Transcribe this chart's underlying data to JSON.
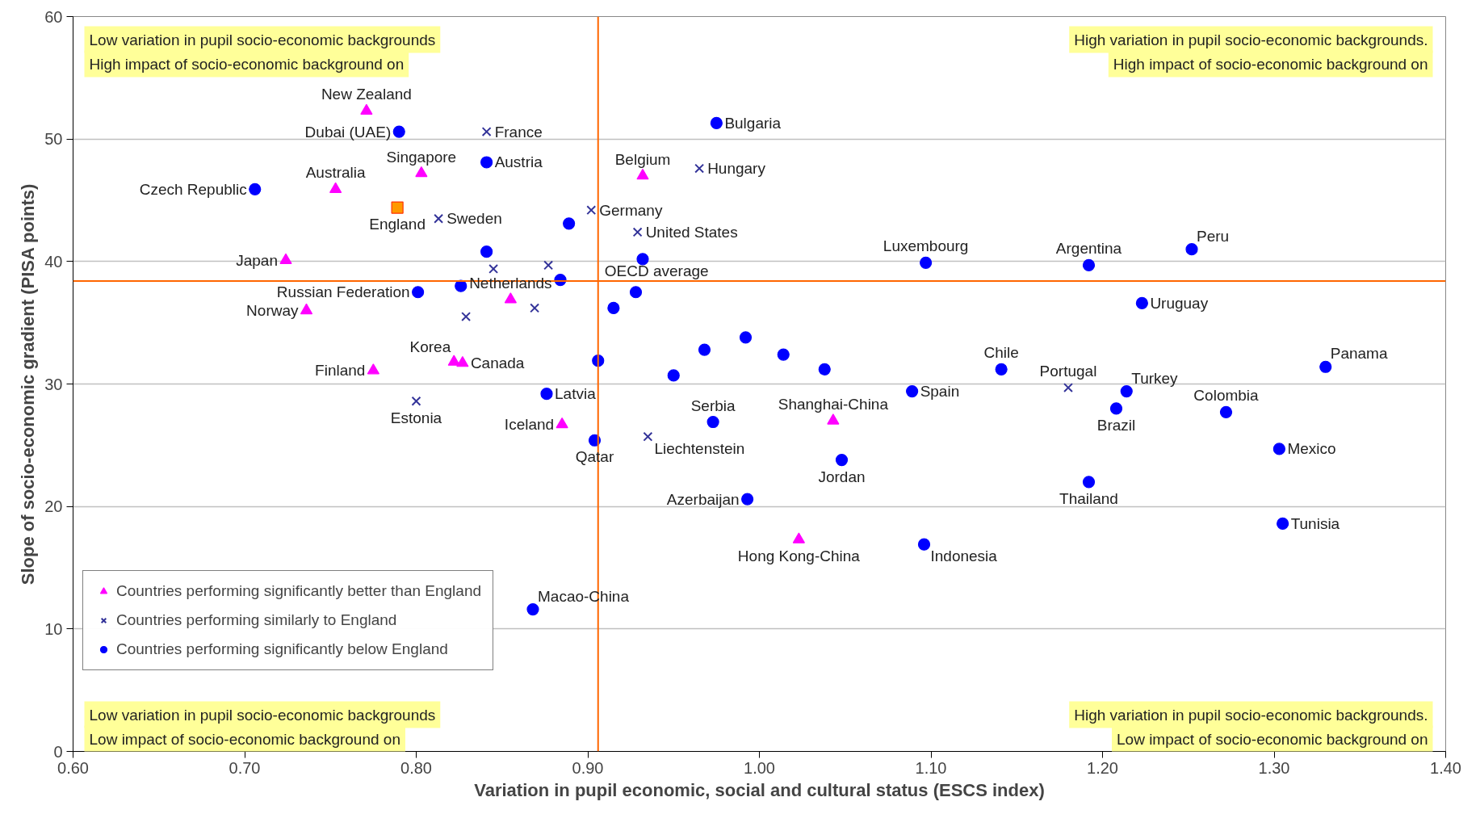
{
  "chart_data": {
    "type": "scatter",
    "xlabel": "Variation in pupil economic, social and cultural status (ESCS index)",
    "ylabel": "Slope of socio-economic gradient (PISA points)",
    "xlim": [
      0.6,
      1.4
    ],
    "ylim": [
      0,
      60
    ],
    "xticks": [
      {
        "value": 0.6,
        "label": "0.60"
      },
      {
        "value": 0.7,
        "label": "0.70"
      },
      {
        "value": 0.8,
        "label": "0.80"
      },
      {
        "value": 0.9,
        "label": "0.90"
      },
      {
        "value": 1.0,
        "label": "1.00"
      },
      {
        "value": 1.1,
        "label": "1.10"
      },
      {
        "value": 1.2,
        "label": "1.20"
      },
      {
        "value": 1.3,
        "label": "1.30"
      },
      {
        "value": 1.4,
        "label": "1.40"
      }
    ],
    "yticks": [
      0,
      10,
      20,
      30,
      40,
      50,
      60
    ],
    "grid": "y",
    "legend": "bottom left",
    "series": [
      {
        "name": "Countries performing significantly better than England",
        "color": "#ff00ff",
        "marker": "triangle",
        "x": [
          0.771,
          0.803,
          0.753,
          0.724,
          0.736,
          0.775,
          0.822,
          0.827,
          0.855,
          0.932,
          0.885,
          1.043,
          1.023
        ],
        "values": [
          52.3,
          47.2,
          45.9,
          40.1,
          36.0,
          31.1,
          31.8,
          31.7,
          36.9,
          47.0,
          26.7,
          27.0,
          17.3
        ]
      },
      {
        "name": "Countries performing similarly to England",
        "color": "#333399",
        "marker": "cross",
        "x": [
          0.841,
          0.813,
          0.902,
          0.929,
          0.965,
          0.845,
          0.877,
          0.869,
          0.829,
          0.8,
          0.935,
          1.18
        ],
        "values": [
          50.6,
          43.5,
          44.2,
          42.4,
          47.6,
          39.4,
          39.7,
          36.2,
          35.5,
          28.6,
          25.7,
          29.7
        ]
      },
      {
        "name": "Countries performing significantly below England",
        "color": "#0000ff",
        "marker": "circle",
        "x": [
          0.79,
          0.706,
          0.841,
          0.975,
          0.889,
          0.841,
          0.932,
          0.884,
          0.801,
          0.826,
          0.928,
          0.915,
          0.906,
          0.968,
          0.992,
          1.014,
          1.038,
          0.95,
          0.876,
          0.904,
          0.973,
          1.048,
          0.993,
          0.868,
          1.089,
          1.096,
          1.097,
          1.192,
          1.252,
          1.223,
          1.141,
          1.214,
          1.208,
          1.272,
          1.33,
          1.303,
          1.192,
          1.305
        ],
        "values": [
          50.6,
          45.9,
          48.1,
          51.3,
          43.1,
          40.8,
          40.2,
          38.5,
          37.5,
          38.0,
          37.5,
          36.2,
          31.9,
          32.8,
          33.8,
          32.4,
          31.2,
          30.7,
          29.2,
          25.4,
          26.9,
          23.8,
          20.6,
          11.6,
          29.4,
          16.9,
          39.9,
          39.7,
          41.0,
          36.6,
          31.2,
          29.4,
          28.0,
          27.7,
          31.4,
          24.7,
          22.0,
          18.6
        ]
      },
      {
        "color": "#ff9900",
        "marker": "square",
        "x": [
          0.789
        ],
        "values": [
          44.4
        ]
      }
    ],
    "ref_lines": [
      {
        "axis": "x",
        "value": 0.906,
        "color": "#ff6600"
      },
      {
        "axis": "y",
        "value": 38.4,
        "label": "OECD average",
        "color": "#ff6600"
      }
    ],
    "annotations": [
      "Low variation in pupil socio-economic backgrounds",
      "High impact of socio-economic background on",
      "High variation in pupil socio-economic backgrounds.",
      "High impact of socio-economic background on",
      "Low variation in pupil socio-economic backgrounds",
      "Low impact of socio-economic background on",
      "High variation in pupil socio-economic backgrounds.",
      "Low impact of socio-economic background on",
      {
        "text": "New Zealand",
        "x": 0.771,
        "y": 52.3
      },
      {
        "text": "Dubai (UAE)",
        "x": 0.79,
        "y": 50.6
      },
      {
        "text": "Singapore",
        "x": 0.803,
        "y": 47.2
      },
      {
        "text": "Australia",
        "x": 0.753,
        "y": 45.9
      },
      {
        "text": "Czech Republic",
        "x": 0.706,
        "y": 45.9
      },
      {
        "text": "England",
        "x": 0.789,
        "y": 44.4
      },
      {
        "text": "Sweden",
        "x": 0.813,
        "y": 43.5
      },
      {
        "text": "Japan",
        "x": 0.724,
        "y": 40.1
      },
      {
        "text": "Norway",
        "x": 0.736,
        "y": 36.0
      },
      {
        "text": "Russian Federation",
        "x": 0.801,
        "y": 37.5
      },
      {
        "text": "Finland",
        "x": 0.775,
        "y": 31.1
      },
      {
        "text": "Korea",
        "x": 0.822,
        "y": 31.8
      },
      {
        "text": "Canada",
        "x": 0.827,
        "y": 31.7
      },
      {
        "text": "Netherlands",
        "x": 0.855,
        "y": 36.9
      },
      {
        "text": "France",
        "x": 0.841,
        "y": 50.6
      },
      {
        "text": "Austria",
        "x": 0.841,
        "y": 48.1
      },
      {
        "text": "Estonia",
        "x": 0.8,
        "y": 28.6
      },
      {
        "text": "Latvia",
        "x": 0.876,
        "y": 29.2
      },
      {
        "text": "Iceland",
        "x": 0.885,
        "y": 26.7
      },
      {
        "text": "Qatar",
        "x": 0.904,
        "y": 25.4
      },
      {
        "text": "Belgium",
        "x": 0.932,
        "y": 47.0
      },
      {
        "text": "Germany",
        "x": 0.902,
        "y": 44.2
      },
      {
        "text": "United States",
        "x": 0.929,
        "y": 42.4
      },
      {
        "text": "Hungary",
        "x": 0.965,
        "y": 47.6
      },
      {
        "text": "Bulgaria",
        "x": 0.975,
        "y": 51.3
      },
      {
        "text": "Liechtenstein",
        "x": 0.935,
        "y": 25.7
      },
      {
        "text": "Serbia",
        "x": 0.973,
        "y": 26.9
      },
      {
        "text": "Shanghai-China",
        "x": 1.043,
        "y": 27.0
      },
      {
        "text": "Jordan",
        "x": 1.048,
        "y": 23.8
      },
      {
        "text": "Azerbaijan",
        "x": 0.993,
        "y": 20.6
      },
      {
        "text": "Hong Kong-China",
        "x": 1.023,
        "y": 17.3
      },
      {
        "text": "Macao-China",
        "x": 0.868,
        "y": 11.6
      },
      {
        "text": "Luxembourg",
        "x": 1.097,
        "y": 39.9
      },
      {
        "text": "Spain",
        "x": 1.089,
        "y": 29.4
      },
      {
        "text": "Indonesia",
        "x": 1.096,
        "y": 16.9
      },
      {
        "text": "Argentina",
        "x": 1.192,
        "y": 39.7
      },
      {
        "text": "Peru",
        "x": 1.252,
        "y": 41.0
      },
      {
        "text": "Uruguay",
        "x": 1.223,
        "y": 36.6
      },
      {
        "text": "Chile",
        "x": 1.141,
        "y": 31.2
      },
      {
        "text": "Portugal",
        "x": 1.18,
        "y": 29.7
      },
      {
        "text": "Turkey",
        "x": 1.214,
        "y": 29.4
      },
      {
        "text": "Brazil",
        "x": 1.208,
        "y": 28.0
      },
      {
        "text": "Colombia",
        "x": 1.272,
        "y": 27.7
      },
      {
        "text": "Panama",
        "x": 1.33,
        "y": 31.4
      },
      {
        "text": "Mexico",
        "x": 1.303,
        "y": 24.7
      },
      {
        "text": "Thailand",
        "x": 1.192,
        "y": 22.0
      },
      {
        "text": "Tunisia",
        "x": 1.305,
        "y": 18.6
      }
    ]
  }
}
